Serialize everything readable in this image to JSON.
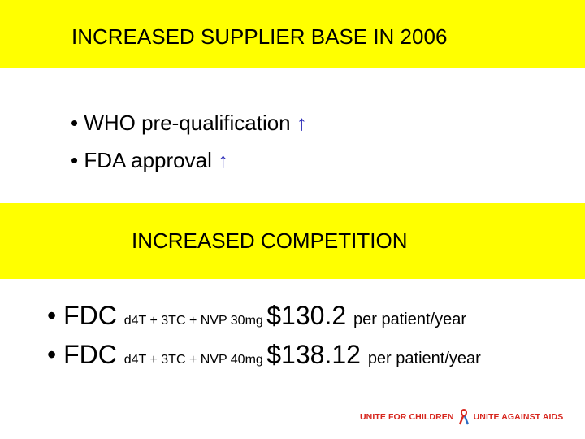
{
  "title": "INCREASED SUPPLIER BASE IN 2006",
  "bullets": [
    {
      "text": "• WHO pre-qualification ",
      "arrow": "↑"
    },
    {
      "text": "• FDA approval ",
      "arrow": "↑"
    }
  ],
  "subtitle": "INCREASED COMPETITION",
  "prices": [
    {
      "prefix": "• FDC ",
      "drug": "d4T + 3TC + NVP 30mg ",
      "price": "$130.2 ",
      "unit": "per patient/year"
    },
    {
      "prefix": "• FDC ",
      "drug": "d4T + 3TC + NVP 40mg ",
      "price": "$138.12 ",
      "unit": "per patient/year"
    }
  ],
  "footer": {
    "left": "UNITE FOR CHILDREN",
    "right": "UNITE AGAINST AIDS",
    "icon": "red-ribbon-icon"
  },
  "colors": {
    "band": "#ffff00",
    "arrow": "#2b2bb8",
    "footer": "#d7261e"
  }
}
